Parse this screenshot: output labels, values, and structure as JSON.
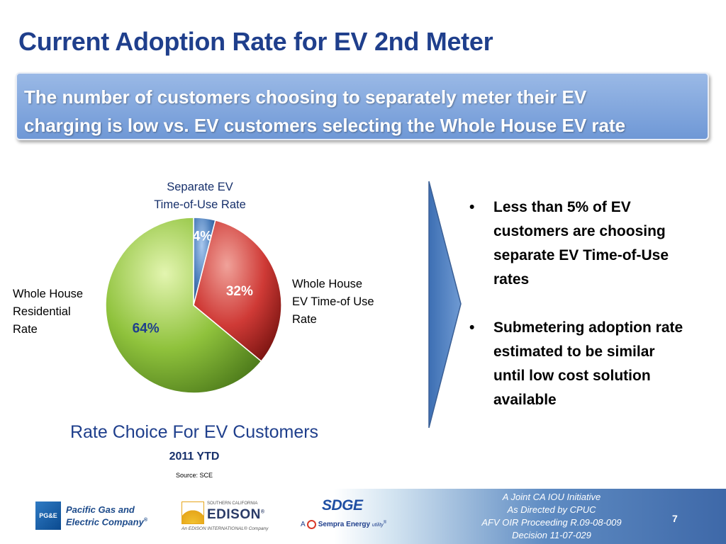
{
  "slide": {
    "title": "Current Adoption Rate for EV 2nd Meter",
    "banner": {
      "line1": "The number of customers choosing to separately meter their EV",
      "line2": "charging is low vs. EV customers selecting the Whole House EV rate"
    }
  },
  "chart_data": {
    "type": "pie",
    "title": "Rate Choice For EV Customers",
    "subtitle": "2011 YTD",
    "source": "Source: SCE",
    "slices": [
      {
        "label_lines": [
          "Separate EV",
          "Time-of-Use Rate"
        ],
        "value": 4,
        "display": "4%",
        "color": "#4f81bd"
      },
      {
        "label_lines": [
          "Whole House",
          "EV Time-of Use",
          "Rate"
        ],
        "value": 32,
        "display": "32%",
        "color": "#cf3a36"
      },
      {
        "label_lines": [
          "Whole House",
          "Residential",
          "Rate"
        ],
        "value": 64,
        "display": "64%",
        "color": "#8fc23c"
      }
    ]
  },
  "bullets": [
    {
      "symbol": "•",
      "lines": [
        "Less than 5% of EV",
        "customers are choosing",
        "separate EV Time-of-Use",
        "rates"
      ]
    },
    {
      "symbol": "•",
      "lines": [
        "Submetering adoption rate",
        "estimated to be similar",
        "until low cost solution",
        "available"
      ]
    }
  ],
  "footer": {
    "logos": {
      "pge": {
        "mark": "PG&E",
        "line1": "Pacific Gas and",
        "line2": "Electric Company",
        "reg": "®"
      },
      "edison": {
        "top": "SOUTHERN CALIFORNIA",
        "name": "EDISON",
        "reg": "®",
        "sub": "An EDISON INTERNATIONAL® Company"
      },
      "sdge": {
        "mark": "SDGE",
        "prefix": "A",
        "company": "Sempra Energy",
        "suffix": "utility",
        "tm": "®"
      }
    },
    "lines": [
      "A Joint CA IOU Initiative",
      "As Directed by CPUC",
      "AFV OIR Proceeding R.09-08-009",
      "Decision 11-07-029"
    ],
    "page_number": "7"
  }
}
